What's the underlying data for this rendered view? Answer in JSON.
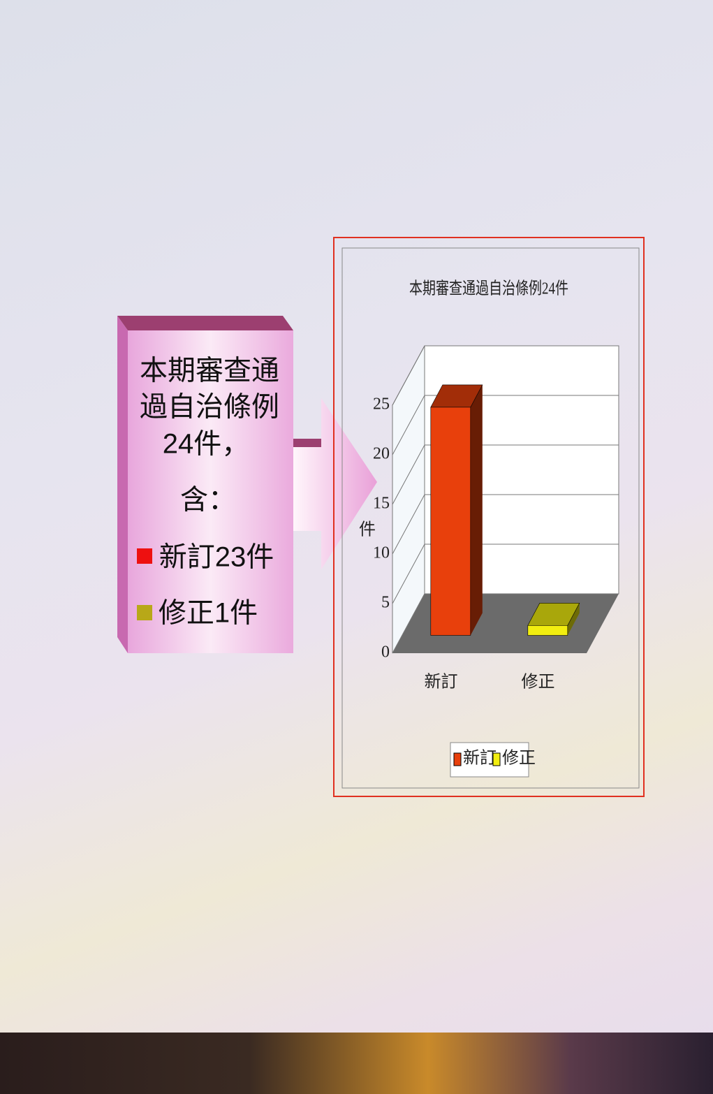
{
  "chart_data": {
    "type": "bar3d",
    "title": "本期審查通過自治條例24件",
    "y_label": "件",
    "categories": [
      "新訂",
      "修正"
    ],
    "values": [
      23,
      1
    ],
    "colors": [
      "#e8400c",
      "#f2ee10"
    ],
    "ylim": [
      0,
      25
    ],
    "yticks": [
      0,
      5,
      10,
      15,
      20,
      25
    ],
    "grid": true,
    "legend": "bottom"
  },
  "callout": {
    "lines": [
      "本期審查通",
      "過自治條例",
      "24件，",
      "含：",
      "新訂23件",
      "修正1件"
    ]
  }
}
